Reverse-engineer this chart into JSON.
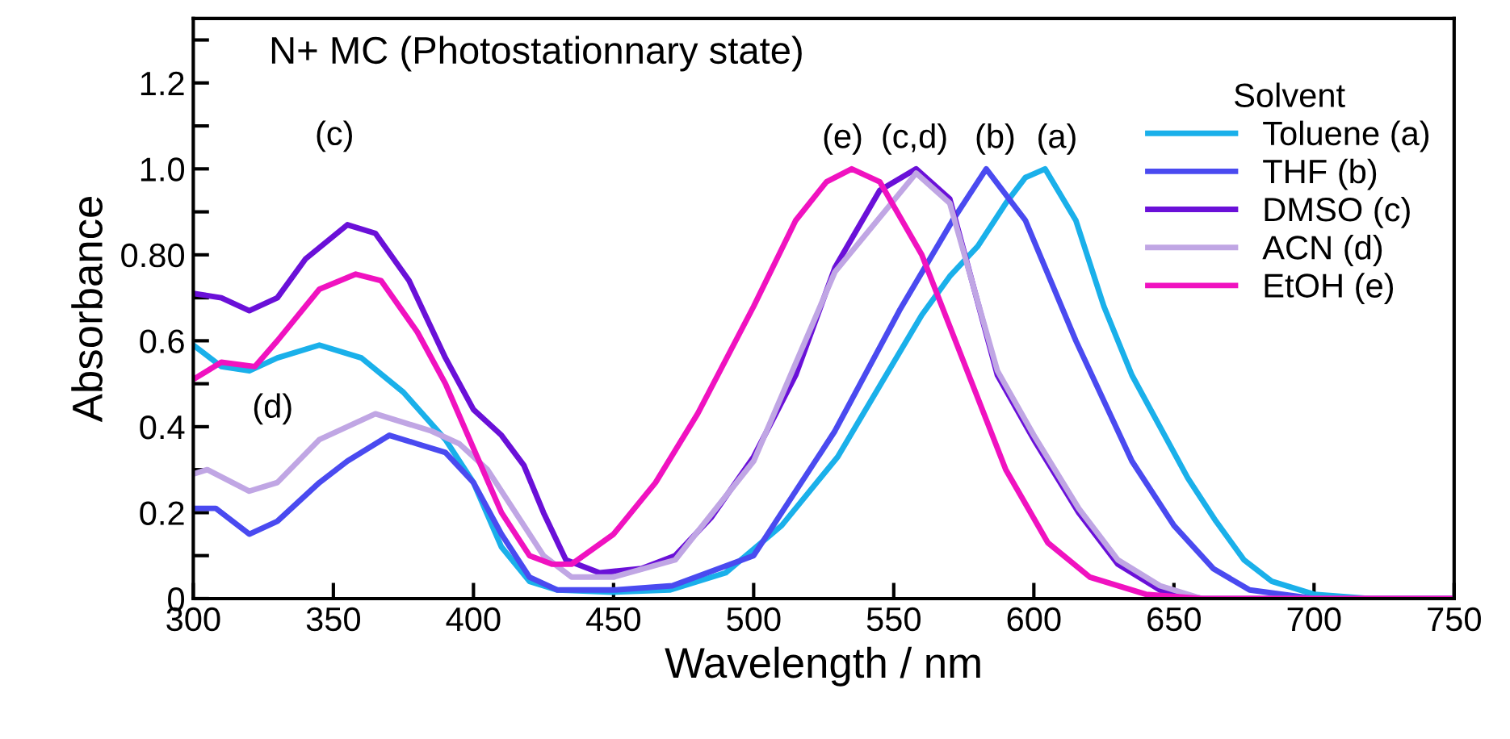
{
  "chart_data": {
    "type": "line",
    "title": "N+ MC (Photostationnary state)",
    "xlabel": "Wavelength / nm",
    "ylabel": "Absorbance",
    "legend_title": "Solvent",
    "legend": "top right",
    "grid": false,
    "marker": "none",
    "line_style": "solid",
    "xlim": [
      300,
      750
    ],
    "xticks": [
      300,
      350,
      400,
      450,
      500,
      550,
      600,
      650,
      700,
      750
    ],
    "ylim": [
      0,
      1.35
    ],
    "yticks": [
      0,
      {
        "value": 0.1,
        "label": null
      },
      {
        "value": 0.2,
        "label": "0.2"
      },
      {
        "value": 0.3,
        "label": null
      },
      {
        "value": 0.4,
        "label": "0.4"
      },
      {
        "value": 0.5,
        "label": null
      },
      {
        "value": 0.6,
        "label": "0.6"
      },
      {
        "value": 0.7,
        "label": null
      },
      {
        "value": 0.8,
        "label": "0.80"
      },
      {
        "value": 0.9,
        "label": null
      },
      {
        "value": 1.0,
        "label": "1.0"
      },
      {
        "value": 1.1,
        "label": null
      },
      {
        "value": 1.2,
        "label": "1.2"
      },
      {
        "value": 1.3,
        "label": null
      }
    ],
    "series": [
      {
        "name": "Toluene (a)",
        "color": "#1ab0ea",
        "x": [
          300,
          310,
          320,
          330,
          345,
          360,
          375,
          390,
          400,
          410,
          420,
          430,
          450,
          470,
          490,
          510,
          530,
          550,
          560,
          570,
          580,
          590,
          597,
          604,
          615,
          625,
          635,
          645,
          655,
          665,
          675,
          685,
          700,
          720,
          750
        ],
        "values": [
          0.59,
          0.54,
          0.53,
          0.56,
          0.59,
          0.56,
          0.48,
          0.37,
          0.27,
          0.12,
          0.04,
          0.02,
          0.015,
          0.02,
          0.06,
          0.17,
          0.33,
          0.55,
          0.66,
          0.75,
          0.82,
          0.92,
          0.98,
          1.0,
          0.88,
          0.68,
          0.52,
          0.4,
          0.28,
          0.18,
          0.09,
          0.04,
          0.01,
          0,
          0
        ]
      },
      {
        "name": "THF (b)",
        "color": "#4a4af0",
        "x": [
          300,
          308,
          320,
          330,
          345,
          355,
          370,
          380,
          390,
          400,
          410,
          420,
          430,
          450,
          471,
          500,
          529,
          552,
          571,
          583,
          597,
          615,
          635,
          650,
          664,
          677,
          700,
          750
        ],
        "values": [
          0.21,
          0.21,
          0.15,
          0.18,
          0.27,
          0.32,
          0.38,
          0.36,
          0.34,
          0.27,
          0.15,
          0.05,
          0.02,
          0.02,
          0.03,
          0.1,
          0.39,
          0.67,
          0.88,
          1.0,
          0.88,
          0.6,
          0.32,
          0.17,
          0.07,
          0.02,
          0,
          0
        ]
      },
      {
        "name": "DMSO (c)",
        "color": "#6a10d8",
        "x": [
          300,
          310,
          320,
          330,
          340,
          355,
          365,
          377,
          390,
          400,
          410,
          418,
          425,
          433,
          445,
          460,
          472,
          485,
          500,
          515,
          529,
          545,
          558,
          570,
          587,
          600,
          616,
          630,
          645,
          660,
          750
        ],
        "values": [
          0.71,
          0.7,
          0.67,
          0.7,
          0.79,
          0.87,
          0.85,
          0.74,
          0.56,
          0.44,
          0.38,
          0.31,
          0.2,
          0.09,
          0.06,
          0.07,
          0.1,
          0.19,
          0.33,
          0.52,
          0.77,
          0.95,
          1.0,
          0.93,
          0.52,
          0.37,
          0.2,
          0.08,
          0.02,
          0,
          0
        ]
      },
      {
        "name": "ACN (d)",
        "color": "#c0a6e4",
        "x": [
          300,
          305,
          320,
          330,
          345,
          365,
          375,
          385,
          395,
          405,
          415,
          425,
          435,
          450,
          472,
          500,
          529,
          558,
          570,
          587,
          600,
          616,
          630,
          645,
          660,
          750
        ],
        "values": [
          0.29,
          0.3,
          0.25,
          0.27,
          0.37,
          0.43,
          0.41,
          0.39,
          0.36,
          0.3,
          0.2,
          0.1,
          0.05,
          0.05,
          0.09,
          0.32,
          0.76,
          0.99,
          0.92,
          0.53,
          0.38,
          0.21,
          0.09,
          0.03,
          0,
          0
        ]
      },
      {
        "name": "EtOH (e)",
        "color": "#f012c0",
        "x": [
          300,
          310,
          322,
          330,
          345,
          358,
          367,
          380,
          390,
          400,
          410,
          420,
          428,
          435,
          450,
          465,
          480,
          500,
          515,
          526,
          535,
          545,
          560,
          575,
          590,
          605,
          620,
          640,
          660,
          750
        ],
        "values": [
          0.51,
          0.55,
          0.54,
          0.6,
          0.72,
          0.755,
          0.74,
          0.62,
          0.5,
          0.35,
          0.2,
          0.1,
          0.08,
          0.08,
          0.15,
          0.27,
          0.43,
          0.68,
          0.88,
          0.97,
          1.0,
          0.97,
          0.8,
          0.55,
          0.3,
          0.13,
          0.05,
          0.01,
          0,
          0
        ]
      }
    ],
    "annotations": [
      "(c)",
      "(d)",
      "(e)",
      "(c,d)",
      "(b)",
      "(a)"
    ]
  }
}
